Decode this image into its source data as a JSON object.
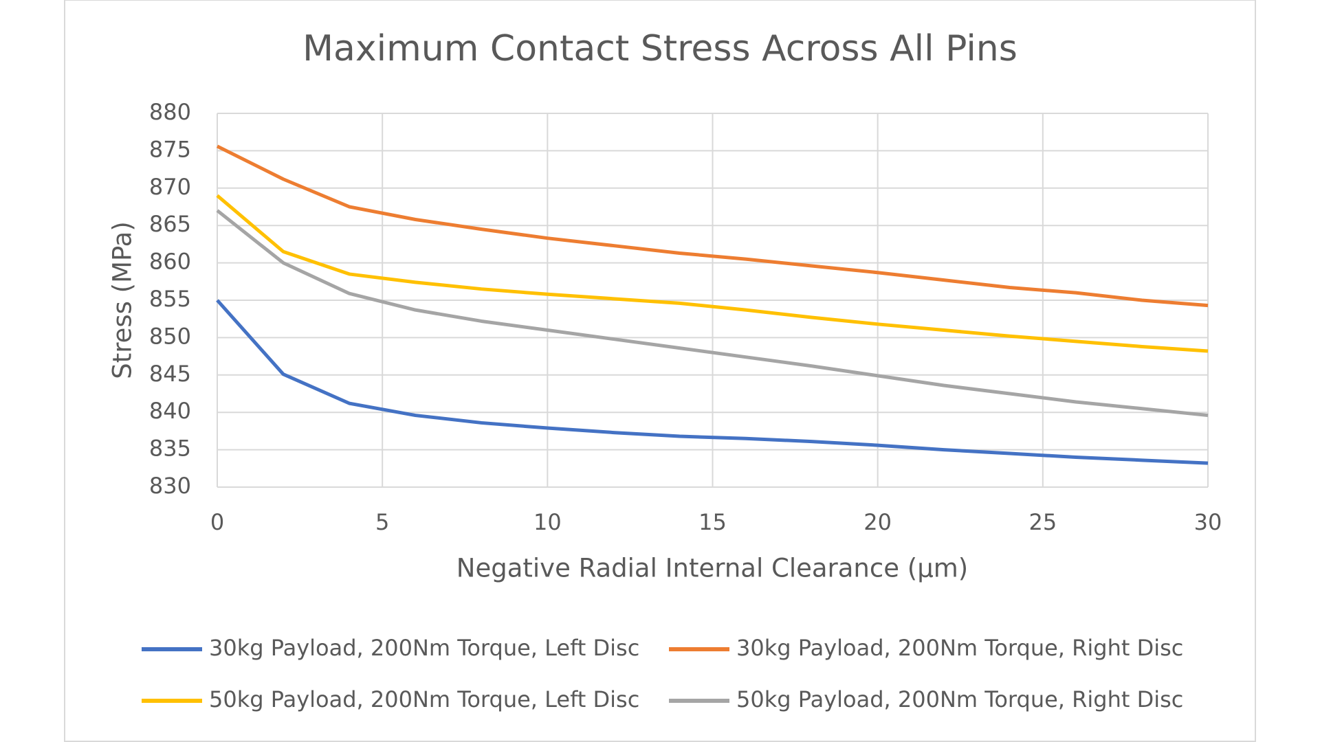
{
  "chart_data": {
    "type": "line",
    "title": "Maximum Contact Stress Across All Pins",
    "x_label": "Negative Radial Internal Clearance (µm)",
    "y_label": "Stress (MPa)",
    "x": [
      0,
      2,
      4,
      6,
      8,
      10,
      12,
      14,
      16,
      18,
      20,
      22,
      24,
      26,
      28,
      30
    ],
    "series": [
      {
        "name": "30kg Payload, 200Nm Torque, Left Disc",
        "color": "#4472c4",
        "values": [
          855.0,
          845.1,
          841.2,
          839.6,
          838.6,
          837.9,
          837.3,
          836.8,
          836.5,
          836.1,
          835.6,
          835.0,
          834.5,
          834.0,
          833.6,
          833.2
        ]
      },
      {
        "name": "30kg Payload, 200Nm Torque, Right Disc",
        "color": "#ed7d31",
        "values": [
          875.6,
          871.2,
          867.5,
          865.8,
          864.5,
          863.3,
          862.3,
          861.3,
          860.5,
          859.6,
          858.7,
          857.7,
          856.7,
          856.0,
          855.0,
          854.3
        ]
      },
      {
        "name": "50kg Payload, 200Nm Torque, Left Disc",
        "color": "#ffc000",
        "values": [
          869.0,
          861.5,
          858.5,
          857.4,
          856.5,
          855.8,
          855.2,
          854.6,
          853.7,
          852.7,
          851.8,
          851.0,
          850.2,
          849.5,
          848.8,
          848.2
        ]
      },
      {
        "name": "50kg Payload, 200Nm Torque, Right Disc",
        "color": "#a5a5a5",
        "values": [
          867.0,
          860.0,
          855.9,
          853.7,
          852.2,
          851.0,
          849.8,
          848.6,
          847.4,
          846.2,
          844.9,
          843.6,
          842.5,
          841.4,
          840.5,
          839.6
        ]
      }
    ],
    "xlim": [
      0,
      30
    ],
    "xticks": [
      0,
      5,
      10,
      15,
      20,
      25,
      30
    ],
    "ylim": [
      830,
      880
    ],
    "yticks": [
      830,
      835,
      840,
      845,
      850,
      855,
      860,
      865,
      870,
      875,
      880
    ],
    "grid": true,
    "legend": "bottom"
  }
}
